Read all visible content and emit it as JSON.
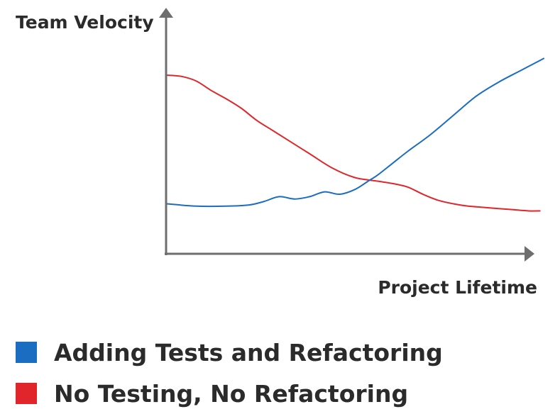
{
  "chart_data": {
    "type": "line",
    "title": "",
    "ylabel": "Team Velocity",
    "xlabel": "Project Lifetime",
    "xlim": [
      0,
      100
    ],
    "ylim": [
      0,
      100
    ],
    "grid": false,
    "axis_ticks": false,
    "legend_position": "bottom-left",
    "series": [
      {
        "name": "Adding Tests and Refactoring",
        "color": "#1a6dc0",
        "x": [
          0,
          8,
          16,
          22,
          26,
          30,
          34,
          38,
          42,
          46,
          50,
          54,
          56,
          60,
          64,
          70,
          76,
          82,
          88,
          94,
          100
        ],
        "y": [
          21,
          20,
          20,
          20.5,
          22,
          24,
          23,
          24,
          26,
          25,
          27,
          31,
          33,
          38,
          43,
          50,
          58,
          66,
          72,
          77,
          82
        ]
      },
      {
        "name": "No Testing, No Refactoring",
        "color": "#e0262b",
        "x": [
          0,
          4,
          8,
          12,
          16,
          20,
          24,
          28,
          32,
          38,
          44,
          50,
          56,
          60,
          64,
          68,
          72,
          76,
          80,
          84,
          88,
          92,
          96,
          99
        ],
        "y": [
          75,
          74.5,
          72.5,
          68.5,
          65,
          61,
          56,
          52,
          48,
          42,
          36,
          32,
          30.5,
          29.5,
          28,
          25,
          22.5,
          21,
          20,
          19.5,
          19,
          18.5,
          18,
          18
        ]
      }
    ]
  }
}
